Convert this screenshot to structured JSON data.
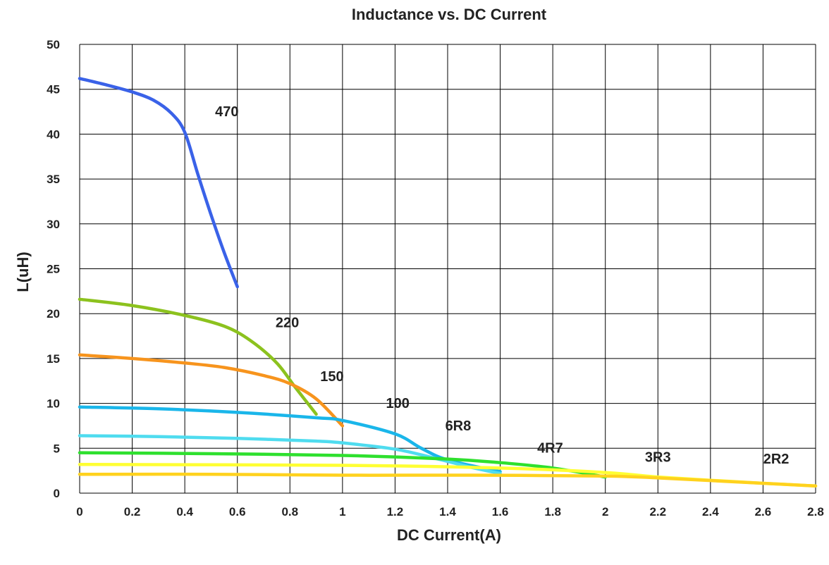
{
  "chart_data": {
    "type": "line",
    "title": "Inductance vs. DC Current",
    "xlabel": "DC Current(A)",
    "ylabel": "L(uH)",
    "xlim": [
      0,
      2.8
    ],
    "ylim": [
      0,
      50
    ],
    "grid": true,
    "x_ticks": [
      "0",
      "0.2",
      "0.4",
      "0.6",
      "0.8",
      "1",
      "1.2",
      "1.4",
      "1.6",
      "1.8",
      "2",
      "2.2",
      "2.4",
      "2.6",
      "2.8"
    ],
    "y_ticks": [
      "0",
      "5",
      "10",
      "15",
      "20",
      "25",
      "30",
      "35",
      "40",
      "45",
      "50"
    ],
    "series": [
      {
        "name": "470",
        "color": "#3a62e8",
        "x": [
          0,
          0.1,
          0.2,
          0.28,
          0.35,
          0.4,
          0.45,
          0.5,
          0.55,
          0.6
        ],
        "y": [
          46.2,
          45.5,
          44.7,
          43.8,
          42.3,
          40.2,
          35.5,
          31.0,
          26.8,
          23.0
        ],
        "label": {
          "text": "470",
          "x": 0.56,
          "y": 42
        }
      },
      {
        "name": "220",
        "color": "#8cc21e",
        "x": [
          0,
          0.2,
          0.4,
          0.55,
          0.65,
          0.75,
          0.82,
          0.9
        ],
        "y": [
          21.6,
          20.9,
          19.8,
          18.6,
          17.0,
          14.5,
          11.8,
          8.8
        ],
        "label": {
          "text": "220",
          "x": 0.79,
          "y": 18.5
        }
      },
      {
        "name": "150",
        "color": "#f7941d",
        "x": [
          0,
          0.2,
          0.4,
          0.55,
          0.7,
          0.8,
          0.9,
          1.0
        ],
        "y": [
          15.4,
          15.0,
          14.5,
          14.0,
          13.1,
          12.2,
          10.5,
          7.5
        ],
        "label": {
          "text": "150",
          "x": 0.96,
          "y": 12.5
        }
      },
      {
        "name": "100",
        "color": "#1ab6ea",
        "x": [
          0,
          0.3,
          0.6,
          0.9,
          1.0,
          1.2,
          1.3,
          1.4,
          1.6
        ],
        "y": [
          9.6,
          9.4,
          9.0,
          8.4,
          8.1,
          6.6,
          5.0,
          3.7,
          2.4
        ],
        "label": {
          "text": "100",
          "x": 1.21,
          "y": 9.5
        }
      },
      {
        "name": "6R8",
        "color": "#4fdcef",
        "x": [
          0,
          0.3,
          0.6,
          0.9,
          1.0,
          1.2,
          1.35,
          1.5,
          1.6
        ],
        "y": [
          6.4,
          6.3,
          6.1,
          5.8,
          5.6,
          4.9,
          3.9,
          2.8,
          2.2
        ],
        "label": {
          "text": "6R8",
          "x": 1.44,
          "y": 7.0
        }
      },
      {
        "name": "4R7",
        "color": "#2ee02e",
        "x": [
          0,
          0.5,
          1.0,
          1.4,
          1.6,
          1.8,
          2.0
        ],
        "y": [
          4.5,
          4.4,
          4.2,
          3.8,
          3.4,
          2.8,
          1.8
        ],
        "label": {
          "text": "4R7",
          "x": 1.79,
          "y": 4.5
        }
      },
      {
        "name": "3R3",
        "color": "#ffff33",
        "x": [
          0,
          1.0,
          1.6,
          2.0,
          2.2,
          2.6,
          2.8
        ],
        "y": [
          3.2,
          3.1,
          2.8,
          2.3,
          1.8,
          1.1,
          0.8
        ],
        "label": {
          "text": "3R3",
          "x": 2.2,
          "y": 3.5
        }
      },
      {
        "name": "2R2",
        "color": "#ffd21e",
        "x": [
          0,
          0.5,
          1.0,
          1.5,
          2.0,
          2.2,
          2.4,
          2.6,
          2.8
        ],
        "y": [
          2.1,
          2.1,
          2.0,
          2.0,
          1.9,
          1.7,
          1.4,
          1.1,
          0.8
        ],
        "label": {
          "text": "2R2",
          "x": 2.65,
          "y": 3.3
        }
      }
    ]
  }
}
